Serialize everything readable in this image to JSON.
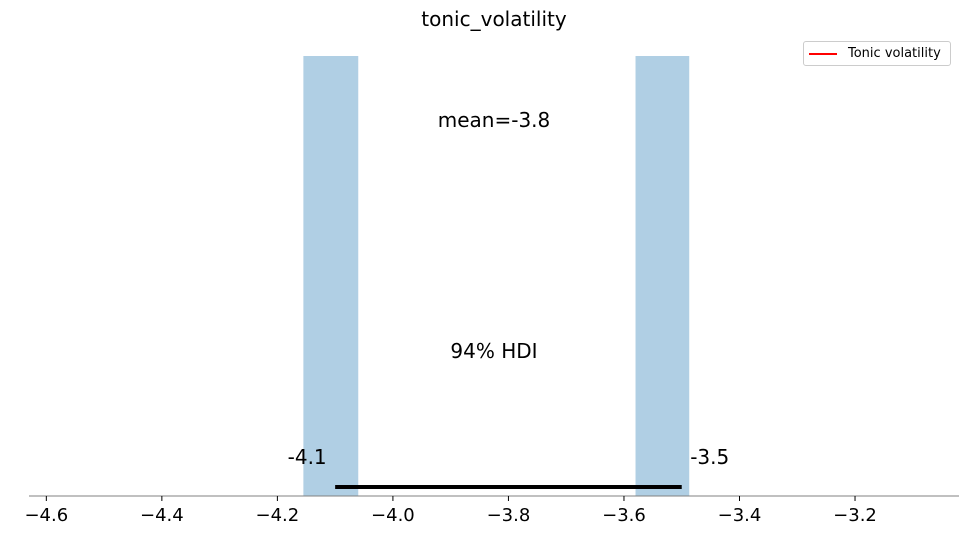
{
  "chart_data": {
    "type": "bar",
    "title": "tonic_volatility",
    "xlabel": "",
    "ylabel": "",
    "xlim": [
      -4.63,
      -3.02
    ],
    "x_ticks": [
      "−4.6",
      "−4.4",
      "−4.2",
      "−4.0",
      "−3.8",
      "−3.6",
      "−3.4",
      "−3.2"
    ],
    "x_tick_values": [
      -4.6,
      -4.4,
      -4.2,
      -4.0,
      -3.8,
      -3.6,
      -3.4,
      -3.2
    ],
    "bars": [
      {
        "x_start": -4.155,
        "x_end": -4.06,
        "height": 1
      },
      {
        "x_start": -3.58,
        "x_end": -3.487,
        "height": 1
      }
    ],
    "bar_color": "#b0cfe4",
    "hdi": {
      "low": -4.1,
      "high": -3.5,
      "low_label": "-4.1",
      "high_label": "-3.5",
      "label": "94% HDI"
    },
    "mean_label": "mean=-3.8",
    "legend": {
      "label": "Tonic volatility",
      "color": "#ff0000",
      "position": "top-right"
    }
  }
}
